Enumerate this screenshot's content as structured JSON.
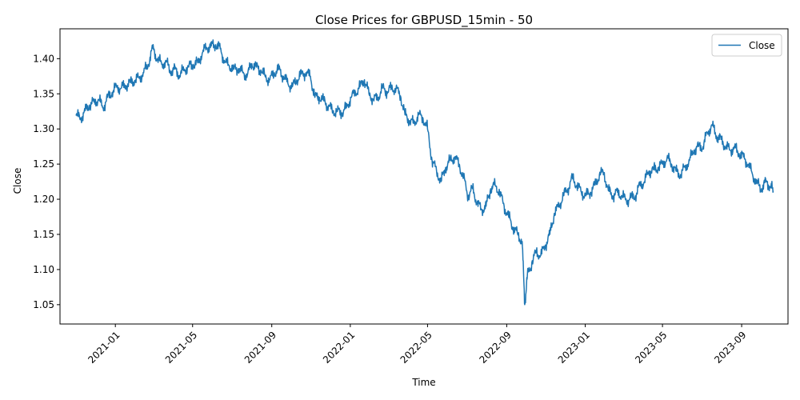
{
  "chart_data": {
    "type": "line",
    "title": "Close Prices for GBPUSD_15min - 50",
    "xlabel": "Time",
    "ylabel": "Close",
    "x_range": [
      "2020-10-07",
      "2023-11-12"
    ],
    "ylim": [
      1.0225,
      1.4425
    ],
    "x_ticks": [
      "2021-01",
      "2021-05",
      "2021-09",
      "2022-01",
      "2022-05",
      "2022-09",
      "2023-01",
      "2023-05",
      "2023-09"
    ],
    "y_ticks": [
      "1.05",
      "1.10",
      "1.15",
      "1.20",
      "1.25",
      "1.30",
      "1.35",
      "1.40"
    ],
    "legend": {
      "position": "top-right",
      "entries": [
        "Close"
      ]
    },
    "grid": false,
    "series": [
      {
        "name": "Close",
        "color": "#1f77b4",
        "points": [
          [
            "2020-11-01",
            1.319
          ],
          [
            "2020-11-08",
            1.315
          ],
          [
            "2020-11-15",
            1.326
          ],
          [
            "2020-11-22",
            1.334
          ],
          [
            "2020-11-29",
            1.338
          ],
          [
            "2020-12-06",
            1.342
          ],
          [
            "2020-12-13",
            1.33
          ],
          [
            "2020-12-20",
            1.345
          ],
          [
            "2020-12-27",
            1.352
          ],
          [
            "2021-01-03",
            1.36
          ],
          [
            "2021-01-10",
            1.358
          ],
          [
            "2021-01-17",
            1.362
          ],
          [
            "2021-01-24",
            1.366
          ],
          [
            "2021-01-31",
            1.369
          ],
          [
            "2021-02-07",
            1.372
          ],
          [
            "2021-02-14",
            1.38
          ],
          [
            "2021-02-21",
            1.392
          ],
          [
            "2021-02-28",
            1.415
          ],
          [
            "2021-03-07",
            1.4
          ],
          [
            "2021-03-14",
            1.392
          ],
          [
            "2021-03-21",
            1.395
          ],
          [
            "2021-03-28",
            1.382
          ],
          [
            "2021-04-04",
            1.385
          ],
          [
            "2021-04-11",
            1.376
          ],
          [
            "2021-04-18",
            1.385
          ],
          [
            "2021-04-25",
            1.388
          ],
          [
            "2021-05-02",
            1.392
          ],
          [
            "2021-05-09",
            1.394
          ],
          [
            "2021-05-16",
            1.408
          ],
          [
            "2021-05-23",
            1.416
          ],
          [
            "2021-05-30",
            1.418
          ],
          [
            "2021-06-06",
            1.42
          ],
          [
            "2021-06-13",
            1.414
          ],
          [
            "2021-06-20",
            1.395
          ],
          [
            "2021-06-27",
            1.39
          ],
          [
            "2021-07-04",
            1.385
          ],
          [
            "2021-07-11",
            1.386
          ],
          [
            "2021-07-18",
            1.38
          ],
          [
            "2021-07-25",
            1.376
          ],
          [
            "2021-08-01",
            1.393
          ],
          [
            "2021-08-08",
            1.388
          ],
          [
            "2021-08-15",
            1.384
          ],
          [
            "2021-08-22",
            1.374
          ],
          [
            "2021-08-29",
            1.37
          ],
          [
            "2021-09-05",
            1.38
          ],
          [
            "2021-09-12",
            1.385
          ],
          [
            "2021-09-19",
            1.375
          ],
          [
            "2021-09-26",
            1.365
          ],
          [
            "2021-10-03",
            1.36
          ],
          [
            "2021-10-10",
            1.37
          ],
          [
            "2021-10-17",
            1.378
          ],
          [
            "2021-10-24",
            1.38
          ],
          [
            "2021-10-31",
            1.375
          ],
          [
            "2021-11-07",
            1.345
          ],
          [
            "2021-11-14",
            1.345
          ],
          [
            "2021-11-21",
            1.34
          ],
          [
            "2021-11-28",
            1.333
          ],
          [
            "2021-12-05",
            1.325
          ],
          [
            "2021-12-12",
            1.325
          ],
          [
            "2021-12-19",
            1.323
          ],
          [
            "2021-12-26",
            1.33
          ],
          [
            "2022-01-02",
            1.345
          ],
          [
            "2022-01-09",
            1.352
          ],
          [
            "2022-01-16",
            1.36
          ],
          [
            "2022-01-23",
            1.37
          ],
          [
            "2022-01-30",
            1.35
          ],
          [
            "2022-02-06",
            1.342
          ],
          [
            "2022-02-13",
            1.345
          ],
          [
            "2022-02-20",
            1.358
          ],
          [
            "2022-02-27",
            1.353
          ],
          [
            "2022-03-06",
            1.358
          ],
          [
            "2022-03-13",
            1.357
          ],
          [
            "2022-03-20",
            1.347
          ],
          [
            "2022-03-27",
            1.32
          ],
          [
            "2022-04-03",
            1.312
          ],
          [
            "2022-04-10",
            1.308
          ],
          [
            "2022-04-17",
            1.32
          ],
          [
            "2022-04-24",
            1.315
          ],
          [
            "2022-05-01",
            1.3
          ],
          [
            "2022-05-08",
            1.255
          ],
          [
            "2022-05-15",
            1.24
          ],
          [
            "2022-05-22",
            1.225
          ],
          [
            "2022-05-29",
            1.245
          ],
          [
            "2022-06-05",
            1.255
          ],
          [
            "2022-06-12",
            1.26
          ],
          [
            "2022-06-19",
            1.25
          ],
          [
            "2022-06-26",
            1.23
          ],
          [
            "2022-07-03",
            1.205
          ],
          [
            "2022-07-10",
            1.215
          ],
          [
            "2022-07-17",
            1.195
          ],
          [
            "2022-07-24",
            1.185
          ],
          [
            "2022-07-31",
            1.19
          ],
          [
            "2022-08-07",
            1.215
          ],
          [
            "2022-08-14",
            1.22
          ],
          [
            "2022-08-21",
            1.21
          ],
          [
            "2022-08-28",
            1.19
          ],
          [
            "2022-09-04",
            1.175
          ],
          [
            "2022-09-11",
            1.16
          ],
          [
            "2022-09-18",
            1.15
          ],
          [
            "2022-09-25",
            1.14
          ],
          [
            "2022-09-29",
            1.05
          ],
          [
            "2022-10-03",
            1.09
          ],
          [
            "2022-10-10",
            1.11
          ],
          [
            "2022-10-17",
            1.125
          ],
          [
            "2022-10-24",
            1.12
          ],
          [
            "2022-10-31",
            1.135
          ],
          [
            "2022-11-07",
            1.15
          ],
          [
            "2022-11-14",
            1.18
          ],
          [
            "2022-11-21",
            1.19
          ],
          [
            "2022-11-28",
            1.205
          ],
          [
            "2022-12-05",
            1.215
          ],
          [
            "2022-12-12",
            1.23
          ],
          [
            "2022-12-19",
            1.22
          ],
          [
            "2022-12-26",
            1.21
          ],
          [
            "2023-01-02",
            1.205
          ],
          [
            "2023-01-09",
            1.21
          ],
          [
            "2023-01-16",
            1.22
          ],
          [
            "2023-01-23",
            1.235
          ],
          [
            "2023-01-30",
            1.238
          ],
          [
            "2023-02-06",
            1.212
          ],
          [
            "2023-02-13",
            1.205
          ],
          [
            "2023-02-20",
            1.21
          ],
          [
            "2023-02-27",
            1.205
          ],
          [
            "2023-03-06",
            1.198
          ],
          [
            "2023-03-13",
            1.202
          ],
          [
            "2023-03-20",
            1.205
          ],
          [
            "2023-03-27",
            1.22
          ],
          [
            "2023-04-03",
            1.225
          ],
          [
            "2023-04-10",
            1.24
          ],
          [
            "2023-04-17",
            1.242
          ],
          [
            "2023-04-24",
            1.245
          ],
          [
            "2023-05-01",
            1.25
          ],
          [
            "2023-05-08",
            1.258
          ],
          [
            "2023-05-15",
            1.25
          ],
          [
            "2023-05-22",
            1.24
          ],
          [
            "2023-05-29",
            1.235
          ],
          [
            "2023-06-05",
            1.245
          ],
          [
            "2023-06-12",
            1.255
          ],
          [
            "2023-06-19",
            1.27
          ],
          [
            "2023-06-26",
            1.275
          ],
          [
            "2023-07-03",
            1.275
          ],
          [
            "2023-07-10",
            1.295
          ],
          [
            "2023-07-17",
            1.305
          ],
          [
            "2023-07-24",
            1.29
          ],
          [
            "2023-07-31",
            1.285
          ],
          [
            "2023-08-07",
            1.275
          ],
          [
            "2023-08-14",
            1.27
          ],
          [
            "2023-08-21",
            1.273
          ],
          [
            "2023-08-28",
            1.265
          ],
          [
            "2023-09-04",
            1.26
          ],
          [
            "2023-09-11",
            1.25
          ],
          [
            "2023-09-18",
            1.235
          ],
          [
            "2023-09-25",
            1.222
          ],
          [
            "2023-10-02",
            1.215
          ],
          [
            "2023-10-09",
            1.225
          ],
          [
            "2023-10-16",
            1.218
          ],
          [
            "2023-10-20",
            1.212
          ]
        ]
      }
    ]
  }
}
